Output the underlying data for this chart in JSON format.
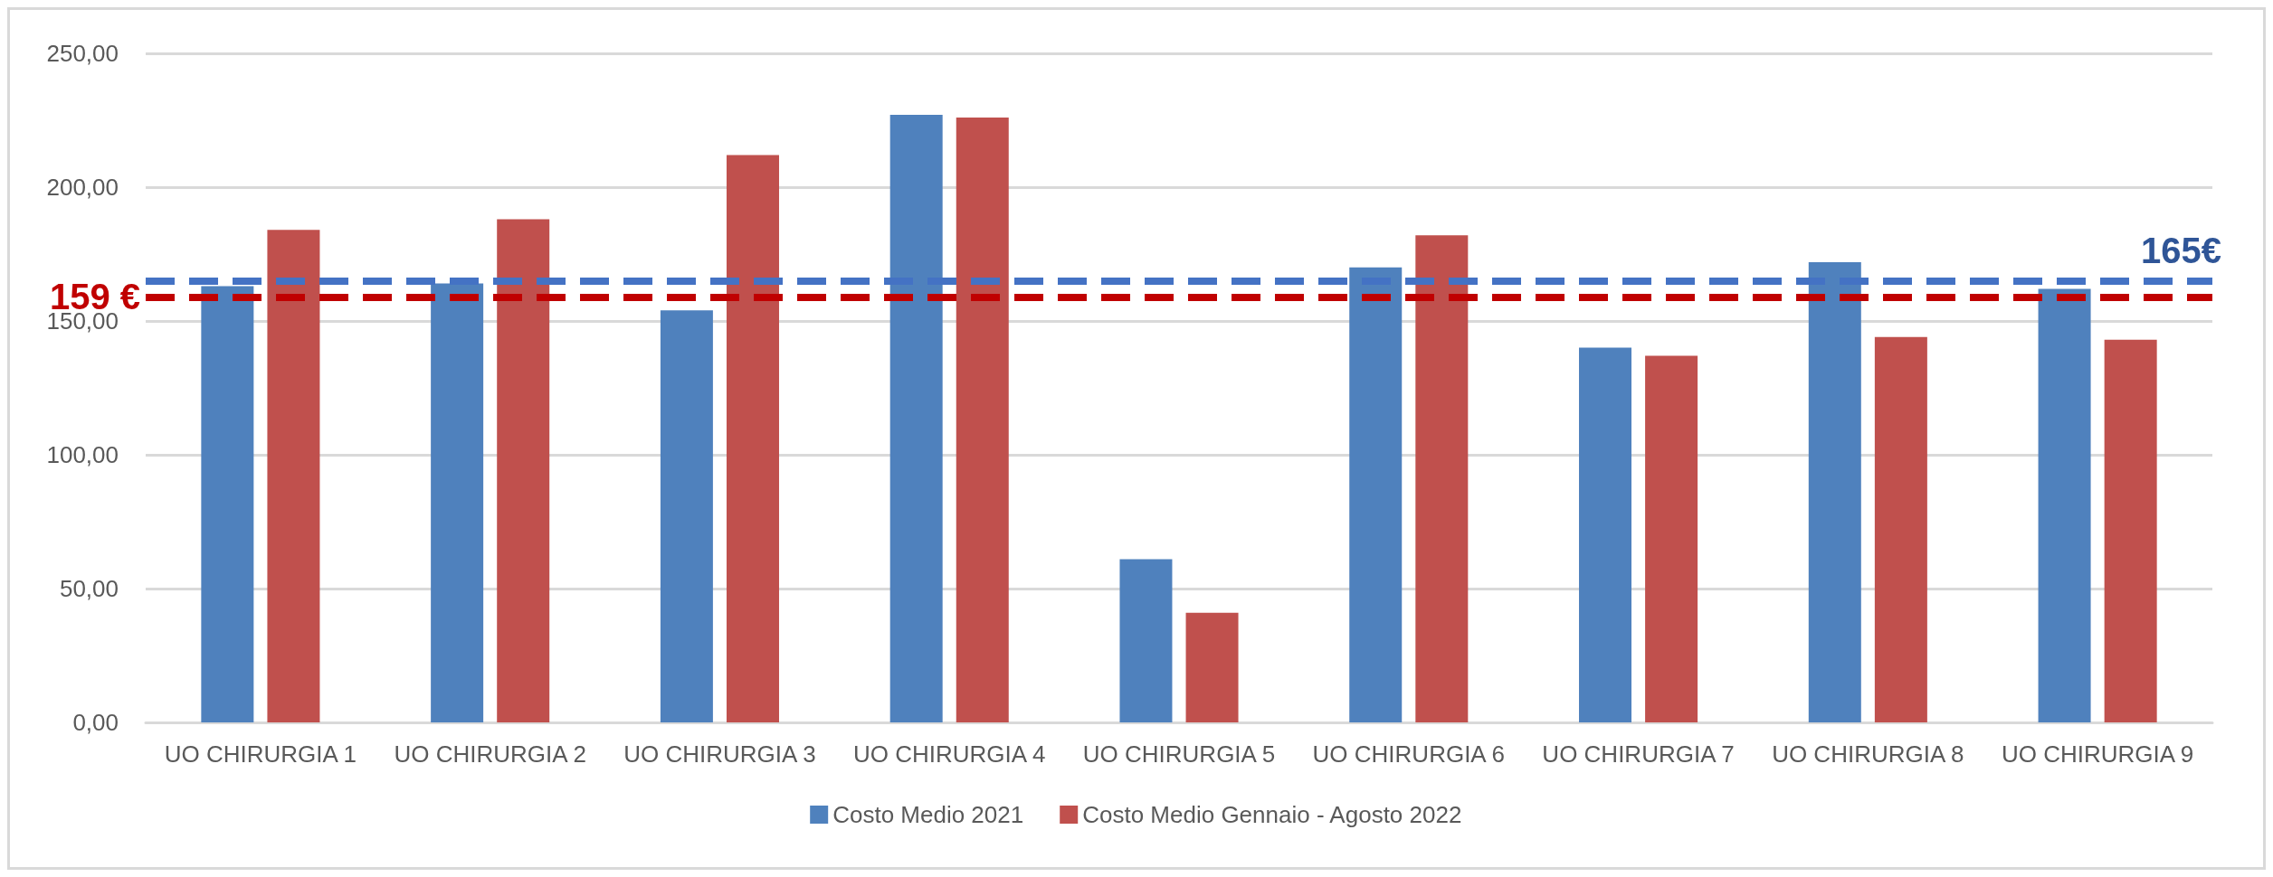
{
  "chart_data": {
    "type": "bar",
    "categories": [
      "UO CHIRURGIA 1",
      "UO CHIRURGIA 2",
      "UO CHIRURGIA 3",
      "UO CHIRURGIA 4",
      "UO CHIRURGIA 5",
      "UO CHIRURGIA 6",
      "UO CHIRURGIA 7",
      "UO CHIRURGIA 8",
      "UO CHIRURGIA 9"
    ],
    "series": [
      {
        "name": "Costo Medio 2021",
        "color": "#4f81bd",
        "values": [
          163,
          164,
          154,
          227,
          61,
          170,
          140,
          172,
          162
        ]
      },
      {
        "name": "Costo Medio Gennaio - Agosto 2022",
        "color": "#c0504d",
        "values": [
          184,
          188,
          212,
          226,
          41,
          182,
          137,
          144,
          143
        ]
      }
    ],
    "ylim": [
      0,
      250
    ],
    "yticks": [
      {
        "value": 0,
        "label": "0,00"
      },
      {
        "value": 50,
        "label": "50,00"
      },
      {
        "value": 100,
        "label": "100,00"
      },
      {
        "value": 150,
        "label": "150,00"
      },
      {
        "value": 200,
        "label": "200,00"
      },
      {
        "value": 250,
        "label": "250,00"
      }
    ],
    "ref_lines": [
      {
        "axis": "y",
        "value": 165,
        "label": "165€",
        "color": "#4472c4",
        "line_style": "dashed"
      },
      {
        "axis": "y",
        "value": 159,
        "label": "159 €",
        "color": "#c00000",
        "line_style": "dashed"
      }
    ],
    "grid": "y",
    "legend": "bottom"
  }
}
